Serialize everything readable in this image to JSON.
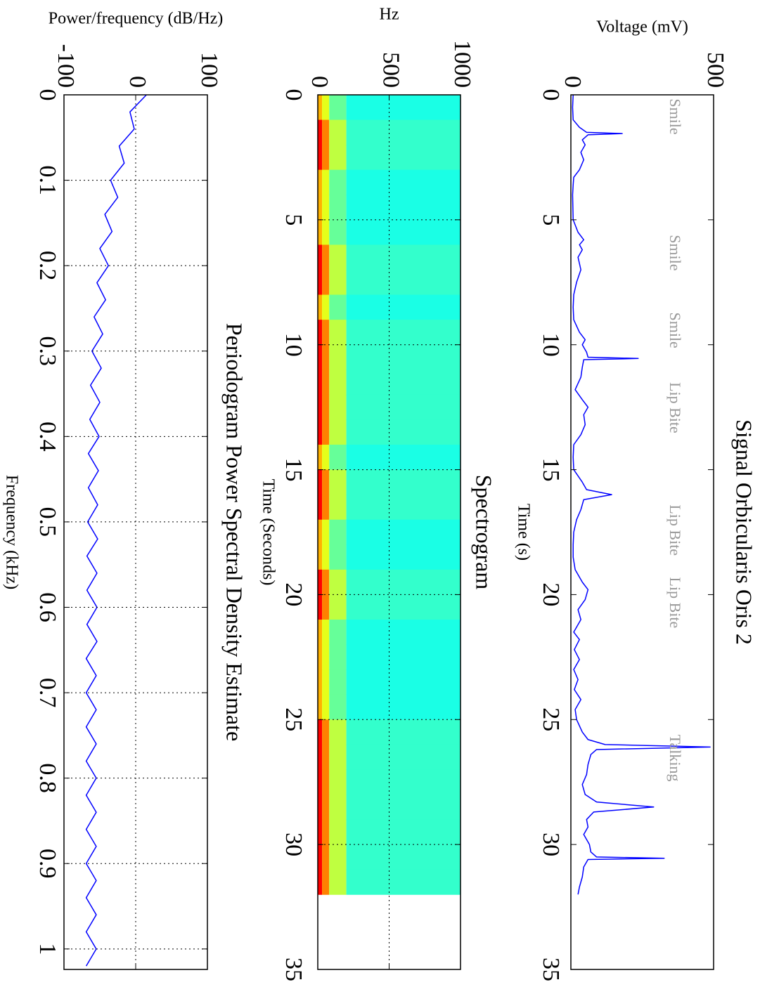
{
  "chart_data": [
    {
      "type": "line",
      "title": "Signal Orbicularis Oris 2",
      "xlabel": "Time (s)",
      "ylabel": "Voltage (mV)",
      "x": [
        0,
        0.5,
        1,
        1.3,
        1.5,
        1.55,
        1.6,
        1.8,
        2.0,
        2.3,
        2.6,
        3.0,
        3.3,
        3.6,
        4.0,
        4.5,
        5.0,
        5.5,
        5.8,
        6.0,
        6.2,
        6.5,
        7.0,
        7.5,
        8.0,
        8.5,
        9.0,
        9.5,
        9.8,
        10.0,
        10.3,
        10.5,
        10.55,
        10.6,
        10.9,
        11.3,
        11.8,
        12.2,
        12.5,
        12.8,
        13.2,
        13.6,
        14.0,
        14.5,
        15.0,
        15.5,
        15.8,
        16.0,
        16.2,
        16.6,
        17.0,
        17.5,
        18.0,
        18.5,
        19.0,
        19.5,
        19.8,
        20.2,
        20.6,
        21.0,
        21.5,
        21.8,
        22.2,
        22.6,
        23.0,
        23.4,
        23.8,
        24.2,
        24.6,
        25.0,
        25.5,
        25.8,
        26.0,
        26.1,
        26.2,
        26.4,
        26.8,
        27.2,
        27.6,
        28.0,
        28.3,
        28.5,
        28.7,
        29.0,
        29.3,
        29.6,
        30.0,
        30.3,
        30.5,
        30.55,
        30.6,
        30.9,
        31.3,
        31.7,
        32.0
      ],
      "values": [
        8,
        6,
        8,
        30,
        55,
        180,
        60,
        40,
        50,
        35,
        45,
        30,
        10,
        8,
        6,
        7,
        8,
        25,
        45,
        30,
        40,
        25,
        35,
        20,
        10,
        8,
        10,
        30,
        50,
        40,
        55,
        60,
        236,
        45,
        40,
        35,
        15,
        40,
        60,
        45,
        50,
        35,
        10,
        8,
        10,
        40,
        55,
        143,
        45,
        35,
        20,
        10,
        8,
        8,
        15,
        40,
        60,
        50,
        25,
        35,
        10,
        30,
        12,
        30,
        10,
        25,
        12,
        35,
        15,
        20,
        40,
        60,
        120,
        488,
        90,
        70,
        60,
        55,
        40,
        50,
        90,
        290,
        80,
        55,
        60,
        45,
        65,
        70,
        90,
        327,
        60,
        45,
        40,
        30,
        25
      ],
      "color": "#0000ff",
      "xlim": [
        0,
        35
      ],
      "xticks": [
        0,
        5,
        10,
        15,
        20,
        25,
        30,
        35
      ],
      "ylim": [
        0,
        500
      ],
      "yticks": [
        0,
        500
      ],
      "grid": false,
      "annotations": [
        {
          "text": "Smile",
          "x": 0.15,
          "y": 360
        },
        {
          "text": "Smile",
          "x": 5.6,
          "y": 360
        },
        {
          "text": "Smile",
          "x": 8.7,
          "y": 360
        },
        {
          "text": "Lip Bite",
          "x": 11.5,
          "y": 360
        },
        {
          "text": "Lip Bite",
          "x": 16.4,
          "y": 360
        },
        {
          "text": "Lip Bite",
          "x": 19.3,
          "y": 360
        },
        {
          "text": "Talking",
          "x": 25.6,
          "y": 360
        }
      ]
    },
    {
      "type": "heatmap",
      "title": "Spectrogram",
      "xlabel": "Time (Seconds)",
      "ylabel": "Hz",
      "x": [
        0,
        1,
        2,
        3,
        4,
        5,
        6,
        7,
        8,
        9,
        10,
        11,
        12,
        13,
        14,
        15,
        16,
        17,
        18,
        19,
        20,
        21,
        22,
        23,
        24,
        25,
        26,
        27,
        28,
        29,
        30,
        31,
        32
      ],
      "y": [
        0,
        30,
        80,
        200,
        1000
      ],
      "z": [
        [
          0.66,
          0.8,
          0.8,
          0.66,
          0.66,
          0.66,
          0.8,
          0.8,
          0.66,
          0.8,
          0.8,
          0.8,
          0.8,
          0.8,
          0.66,
          0.8,
          0.8,
          0.66,
          0.66,
          0.8,
          0.8,
          0.66,
          0.66,
          0.66,
          0.66,
          0.8,
          0.8,
          0.8,
          0.8,
          0.8,
          0.8,
          0.8
        ],
        [
          0.58,
          0.7,
          0.7,
          0.58,
          0.58,
          0.58,
          0.7,
          0.7,
          0.58,
          0.7,
          0.7,
          0.7,
          0.7,
          0.7,
          0.58,
          0.7,
          0.7,
          0.58,
          0.58,
          0.7,
          0.7,
          0.58,
          0.58,
          0.58,
          0.58,
          0.7,
          0.7,
          0.7,
          0.7,
          0.7,
          0.7,
          0.7
        ],
        [
          0.48,
          0.55,
          0.55,
          0.48,
          0.48,
          0.48,
          0.55,
          0.55,
          0.48,
          0.55,
          0.55,
          0.55,
          0.55,
          0.55,
          0.48,
          0.55,
          0.55,
          0.48,
          0.48,
          0.55,
          0.55,
          0.48,
          0.48,
          0.48,
          0.48,
          0.55,
          0.55,
          0.55,
          0.55,
          0.55,
          0.55,
          0.55
        ],
        [
          0.42,
          0.44,
          0.44,
          0.42,
          0.42,
          0.42,
          0.44,
          0.44,
          0.42,
          0.44,
          0.44,
          0.44,
          0.44,
          0.44,
          0.42,
          0.44,
          0.44,
          0.42,
          0.42,
          0.44,
          0.44,
          0.42,
          0.42,
          0.42,
          0.42,
          0.44,
          0.44,
          0.44,
          0.44,
          0.44,
          0.44,
          0.44
        ]
      ],
      "zlim": [
        0,
        1
      ],
      "colormap": [
        "#00008f",
        "#0000ff",
        "#00ffff",
        "#ffff00",
        "#ff0000",
        "#800000"
      ],
      "xlim": [
        0,
        35
      ],
      "xticks": [
        0,
        5,
        10,
        15,
        20,
        25,
        30,
        35
      ],
      "ylim": [
        0,
        1000
      ],
      "yticks": [
        0,
        500,
        1000
      ],
      "grid": true
    },
    {
      "type": "line",
      "title": "Periodogram Power Spectral Density Estimate",
      "xlabel": "Frequency (kHz)",
      "ylabel": "Power/frequency (dB/Hz)",
      "x": [
        0,
        0.02,
        0.04,
        0.06,
        0.08,
        0.1,
        0.12,
        0.14,
        0.16,
        0.18,
        0.2,
        0.22,
        0.24,
        0.26,
        0.28,
        0.3,
        0.32,
        0.34,
        0.36,
        0.38,
        0.4,
        0.42,
        0.44,
        0.46,
        0.48,
        0.5,
        0.52,
        0.54,
        0.56,
        0.58,
        0.6,
        0.62,
        0.64,
        0.66,
        0.68,
        0.7,
        0.72,
        0.74,
        0.76,
        0.78,
        0.8,
        0.82,
        0.84,
        0.86,
        0.88,
        0.9,
        0.92,
        0.94,
        0.96,
        0.98,
        1.0,
        1.02
      ],
      "values": [
        15,
        -8,
        -2,
        -23,
        -16,
        -35,
        -25,
        -43,
        -33,
        -50,
        -38,
        -54,
        -42,
        -58,
        -46,
        -61,
        -48,
        -63,
        -50,
        -64,
        -51,
        -66,
        -52,
        -66,
        -53,
        -67,
        -53,
        -68,
        -54,
        -68,
        -54,
        -68,
        -54,
        -69,
        -55,
        -69,
        -55,
        -69,
        -55,
        -69,
        -55,
        -69,
        -55,
        -69,
        -55,
        -69,
        -55,
        -69,
        -55,
        -69,
        -55,
        -69
      ],
      "color": "#0000ff",
      "xlim": [
        0,
        1.024
      ],
      "xticks": [
        0,
        0.1,
        0.2,
        0.3,
        0.4,
        0.5,
        0.6,
        0.7,
        0.8,
        0.9,
        1
      ],
      "ylim": [
        -100,
        100
      ],
      "yticks": [
        -100,
        0,
        100
      ],
      "grid": true
    }
  ]
}
